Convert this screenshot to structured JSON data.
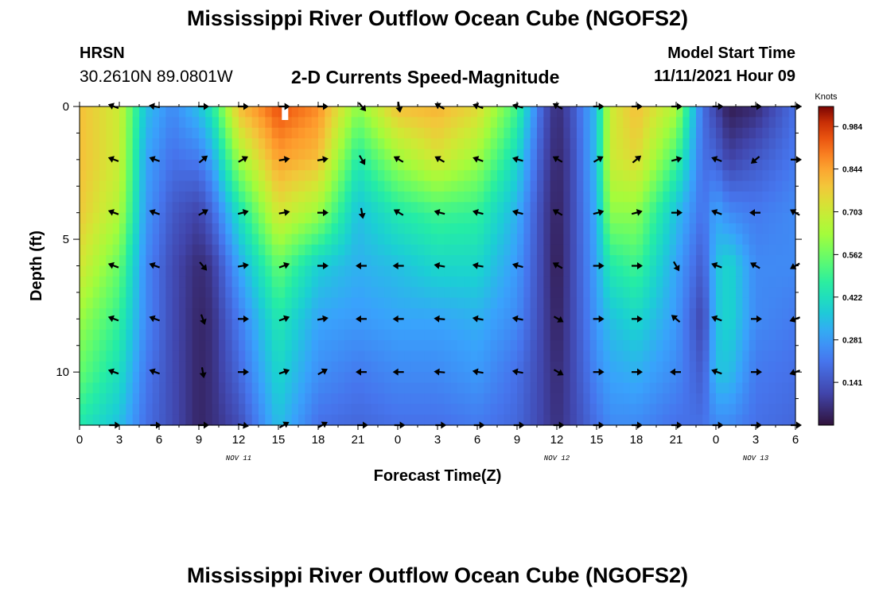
{
  "title": "Mississippi River Outflow Ocean Cube (NGOFS2)",
  "title_bottom": "Mississippi River Outflow Ocean Cube (NGOFS2)",
  "station": {
    "name": "HRSN",
    "coords": "30.2610N  89.0801W"
  },
  "subtitle": "2-D Currents Speed-Magnitude",
  "model_start": {
    "label": "Model Start Time",
    "value": "11/11/2021 Hour 09"
  },
  "colors": {
    "arrow": "#000000",
    "marker": "#ffffff"
  },
  "chart_data": {
    "type": "heatmap",
    "title": "2-D Currents Speed-Magnitude",
    "xlabel": "Forecast Time(Z)",
    "ylabel": "Depth (ft)",
    "x_range_hours": [
      0,
      54
    ],
    "x_ticks": [
      0,
      3,
      6,
      9,
      12,
      15,
      18,
      21,
      24,
      27,
      30,
      33,
      36,
      39,
      42,
      45,
      48,
      51,
      54
    ],
    "x_tick_labels": [
      "0",
      "3",
      "6",
      "9",
      "12",
      "15",
      "18",
      "21",
      "0",
      "3",
      "6",
      "9",
      "12",
      "15",
      "18",
      "21",
      "0",
      "3",
      "6"
    ],
    "day_labels": [
      {
        "text": "NOV 11",
        "hour": 12
      },
      {
        "text": "NOV 12",
        "hour": 36
      },
      {
        "text": "NOV 13",
        "hour": 51
      }
    ],
    "y_range_ft": [
      0,
      12
    ],
    "y_ticks": [
      0,
      5,
      10
    ],
    "y_tick_labels": [
      "0",
      "5",
      "10"
    ],
    "colorbar": {
      "unit": "Knots",
      "min": 0,
      "max": 1.05,
      "ticks": [
        0.984,
        0.844,
        0.703,
        0.562,
        0.422,
        0.281,
        0.141
      ],
      "tick_labels": [
        "0.984",
        "0.844",
        "0.703",
        "0.562",
        "0.422",
        "0.281",
        "0.141"
      ]
    },
    "current_marker_hour": 15.5,
    "depth_levels_ft": [
      0,
      2,
      4,
      6,
      8,
      10,
      12
    ],
    "speed_control_points": [
      {
        "hour": 0,
        "speeds": [
          0.8,
          0.8,
          0.78,
          0.72,
          0.62,
          0.55,
          0.45
        ]
      },
      {
        "hour": 3,
        "speeds": [
          0.7,
          0.7,
          0.65,
          0.55,
          0.48,
          0.42,
          0.35
        ]
      },
      {
        "hour": 5,
        "speeds": [
          0.35,
          0.3,
          0.28,
          0.25,
          0.25,
          0.22,
          0.2
        ]
      },
      {
        "hour": 7,
        "speeds": [
          0.25,
          0.2,
          0.15,
          0.12,
          0.12,
          0.12,
          0.12
        ]
      },
      {
        "hour": 9,
        "speeds": [
          0.35,
          0.22,
          0.1,
          0.05,
          0.04,
          0.04,
          0.04
        ]
      },
      {
        "hour": 10,
        "speeds": [
          0.45,
          0.3,
          0.18,
          0.08,
          0.06,
          0.06,
          0.06
        ]
      },
      {
        "hour": 12,
        "speeds": [
          0.8,
          0.62,
          0.42,
          0.3,
          0.22,
          0.18,
          0.12
        ]
      },
      {
        "hour": 15,
        "speeds": [
          0.95,
          0.85,
          0.72,
          0.55,
          0.45,
          0.4,
          0.35
        ]
      },
      {
        "hour": 18,
        "speeds": [
          0.88,
          0.8,
          0.62,
          0.38,
          0.3,
          0.26,
          0.2
        ]
      },
      {
        "hour": 21,
        "speeds": [
          0.6,
          0.45,
          0.35,
          0.32,
          0.28,
          0.22,
          0.18
        ]
      },
      {
        "hour": 24,
        "speeds": [
          0.8,
          0.62,
          0.45,
          0.35,
          0.3,
          0.25,
          0.2
        ]
      },
      {
        "hour": 27,
        "speeds": [
          0.82,
          0.72,
          0.5,
          0.4,
          0.3,
          0.25,
          0.2
        ]
      },
      {
        "hour": 30,
        "speeds": [
          0.75,
          0.62,
          0.48,
          0.4,
          0.32,
          0.28,
          0.22
        ]
      },
      {
        "hour": 33,
        "speeds": [
          0.5,
          0.4,
          0.32,
          0.28,
          0.25,
          0.2,
          0.18
        ]
      },
      {
        "hour": 35,
        "speeds": [
          0.15,
          0.12,
          0.1,
          0.1,
          0.1,
          0.1,
          0.1
        ]
      },
      {
        "hour": 36,
        "speeds": [
          0.05,
          0.04,
          0.03,
          0.02,
          0.03,
          0.05,
          0.06
        ]
      },
      {
        "hour": 37,
        "speeds": [
          0.12,
          0.1,
          0.1,
          0.1,
          0.1,
          0.1,
          0.1
        ]
      },
      {
        "hour": 39,
        "speeds": [
          0.35,
          0.35,
          0.32,
          0.3,
          0.28,
          0.25,
          0.2
        ]
      },
      {
        "hour": 40,
        "speeds": [
          0.7,
          0.7,
          0.6,
          0.45,
          0.35,
          0.3,
          0.25
        ]
      },
      {
        "hour": 42,
        "speeds": [
          0.8,
          0.75,
          0.6,
          0.5,
          0.4,
          0.32,
          0.25
        ]
      },
      {
        "hour": 45,
        "speeds": [
          0.65,
          0.5,
          0.35,
          0.3,
          0.28,
          0.25,
          0.2
        ]
      },
      {
        "hour": 47,
        "speeds": [
          0.2,
          0.2,
          0.2,
          0.15,
          0.1,
          0.15,
          0.2
        ]
      },
      {
        "hour": 48,
        "speeds": [
          0.1,
          0.18,
          0.3,
          0.35,
          0.35,
          0.35,
          0.25
        ]
      },
      {
        "hour": 49,
        "speeds": [
          0.02,
          0.1,
          0.25,
          0.4,
          0.4,
          0.35,
          0.25
        ]
      },
      {
        "hour": 51,
        "speeds": [
          0.05,
          0.15,
          0.22,
          0.25,
          0.25,
          0.22,
          0.2
        ]
      },
      {
        "hour": 54,
        "speeds": [
          0.2,
          0.22,
          0.25,
          0.25,
          0.22,
          0.2,
          0.18
        ]
      }
    ],
    "arrow_hours": [
      2.6,
      5.7,
      9.3,
      12.3,
      15.4,
      18.3,
      21.3,
      24.1,
      27.2,
      30.1,
      33.1,
      36.1,
      39.1,
      42.0,
      45.0,
      48.1,
      51.0,
      54.0
    ],
    "arrow_depths_ft": [
      0,
      2,
      4,
      6,
      8,
      10,
      12
    ],
    "arrow_angle_columns": [
      [
        200,
        200,
        200,
        200,
        200,
        200,
        0
      ],
      [
        190,
        200,
        200,
        200,
        200,
        200,
        0
      ],
      [
        0,
        320,
        330,
        50,
        70,
        80,
        0
      ],
      [
        0,
        330,
        345,
        350,
        0,
        0,
        10
      ],
      [
        0,
        350,
        350,
        340,
        340,
        340,
        330
      ],
      [
        0,
        350,
        0,
        0,
        350,
        330,
        330
      ],
      [
        50,
        60,
        80,
        180,
        180,
        180,
        0
      ],
      [
        80,
        210,
        210,
        180,
        180,
        180,
        0
      ],
      [
        210,
        210,
        195,
        190,
        185,
        185,
        0
      ],
      [
        200,
        200,
        195,
        190,
        190,
        190,
        0
      ],
      [
        195,
        195,
        195,
        195,
        190,
        190,
        0
      ],
      [
        210,
        210,
        210,
        210,
        30,
        30,
        0
      ],
      [
        0,
        330,
        345,
        0,
        0,
        0,
        0
      ],
      [
        0,
        320,
        345,
        0,
        0,
        0,
        0
      ],
      [
        0,
        345,
        0,
        60,
        220,
        180,
        0
      ],
      [
        0,
        200,
        200,
        200,
        200,
        200,
        0
      ],
      [
        0,
        140,
        180,
        210,
        0,
        0,
        0
      ],
      [
        0,
        0,
        210,
        150,
        160,
        160,
        0
      ]
    ]
  }
}
